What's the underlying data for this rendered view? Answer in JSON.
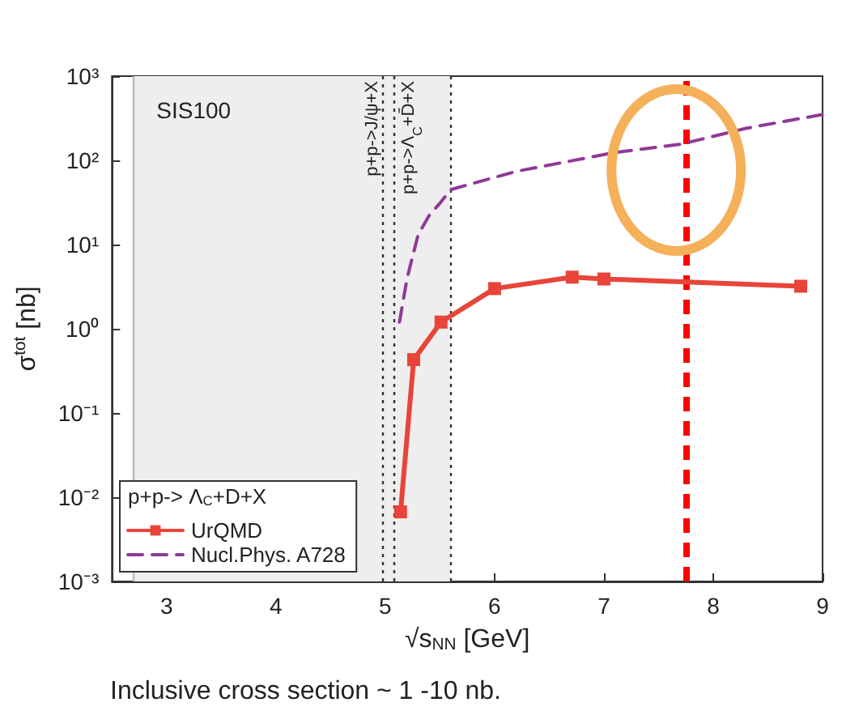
{
  "chart_data": {
    "type": "line",
    "xlabel": "√s$_{NN}$ [GeV]",
    "ylabel": "σ$^{tot}$ [nb]",
    "legend_title": "p+p-> Λ$_{C}$+D+X",
    "annotations": [
      "Inclusive cross section ~ 1 -10 nb."
    ],
    "log": "y",
    "xlim": [
      2.5,
      9
    ],
    "xticks": [
      3,
      4,
      5,
      6,
      7,
      8,
      9
    ],
    "ylim": [
      0.001,
      1000
    ],
    "yticks": [
      {
        "value": 0.001,
        "label": "10⁻³"
      },
      {
        "value": 0.01,
        "label": "10⁻²"
      },
      {
        "value": 0.1,
        "label": "10⁻¹"
      },
      {
        "value": 1,
        "label": "10⁰"
      },
      {
        "value": 10,
        "label": "10¹"
      },
      {
        "value": 100,
        "label": "10²"
      },
      {
        "value": 1000,
        "label": "10³"
      }
    ],
    "grid": false,
    "legend": "bottom left",
    "series": [
      {
        "name": "UrQMD",
        "color": "#e8443a",
        "marker": "square",
        "line_style": "solid",
        "x": [
          5.14,
          5.26,
          5.51,
          6.0,
          6.71,
          7.0,
          8.8
        ],
        "values": [
          0.0067,
          0.43,
          1.2,
          3.0,
          4.1,
          3.9,
          3.2
        ]
      },
      {
        "name": "Nucl.Phys. A728",
        "color": "#8e3a96",
        "marker": "none",
        "line_style": "dashed",
        "x": [
          5.13,
          5.2,
          5.3,
          5.4,
          5.5,
          5.6,
          6.2,
          7.1,
          7.7,
          8.3,
          9.0
        ],
        "values": [
          1.2,
          4,
          13,
          22,
          31,
          45,
          74,
          124,
          155,
          240,
          350
        ]
      }
    ],
    "bands": [
      {
        "axis": "x",
        "from": 2.7,
        "to": 5.6,
        "label": "SIS100",
        "color": "#eeeeee"
      }
    ],
    "ref_lines": [
      {
        "axis": "x",
        "value": 2.7,
        "color": "#bbbbbb",
        "line_style": "solid"
      },
      {
        "axis": "x",
        "value": 4.97,
        "label": "p+p->J/ψ+X",
        "color": "#333333",
        "line_style": "dotted"
      },
      {
        "axis": "x",
        "value": 5.08,
        "label": "p+p->Λ$_{C}$+D̄+X",
        "color": "#333333",
        "line_style": "dotted"
      },
      {
        "axis": "x",
        "value": 5.6,
        "color": "#333333",
        "line_style": "dotted"
      },
      {
        "axis": "x",
        "value": 7.75,
        "color": "#ff0000",
        "line_style": "dashed"
      }
    ]
  }
}
